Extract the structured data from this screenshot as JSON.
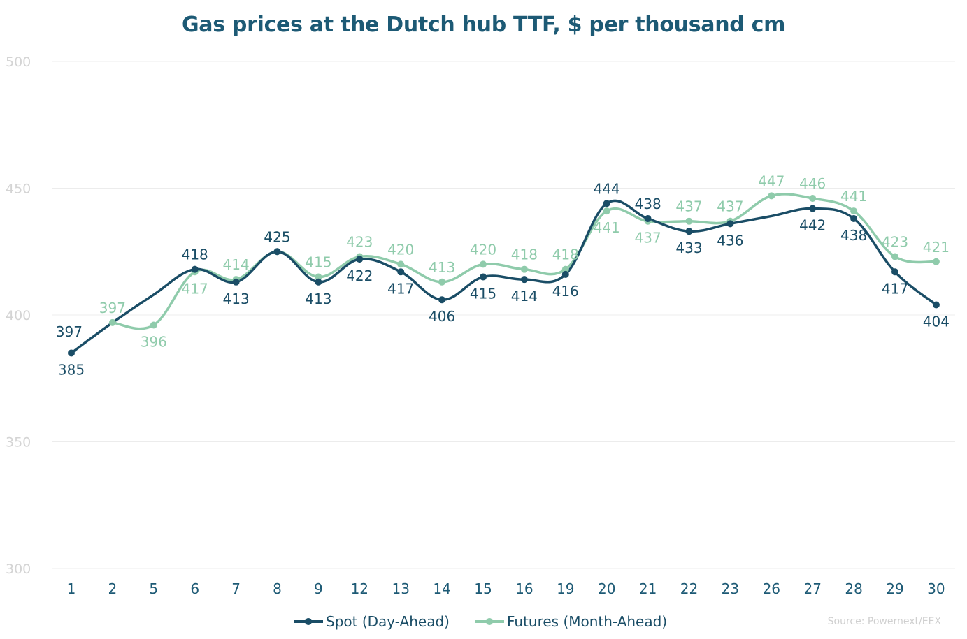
{
  "chart_data": {
    "type": "line",
    "title": "Gas prices at the Dutch hub TTF, $ per thousand cm",
    "categories": [
      "1",
      "2",
      "5",
      "6",
      "7",
      "8",
      "9",
      "12",
      "13",
      "14",
      "15",
      "16",
      "19",
      "20",
      "21",
      "22",
      "23",
      "26",
      "27",
      "28",
      "29",
      "30"
    ],
    "ylim": [
      300,
      500
    ],
    "yticks": [
      300,
      350,
      400,
      450,
      500
    ],
    "grid": true,
    "legend_position": "bottom",
    "series": [
      {
        "name": "Spot (Day-Ahead)",
        "color": "#1a4d66",
        "values": [
          385,
          null,
          null,
          418,
          413,
          425,
          413,
          422,
          417,
          406,
          415,
          414,
          416,
          444,
          438,
          433,
          436,
          null,
          442,
          438,
          417,
          404
        ],
        "plot_values": [
          385,
          397,
          408,
          418,
          413,
          425,
          413,
          422,
          417,
          406,
          415,
          414,
          416,
          444,
          438,
          433,
          436,
          439,
          442,
          438,
          417,
          404
        ]
      },
      {
        "name": "Futures (Month-Ahead)",
        "color": "#8fcbab",
        "values": [
          null,
          397,
          396,
          417,
          414,
          425,
          415,
          423,
          420,
          413,
          420,
          418,
          418,
          441,
          437,
          437,
          437,
          447,
          446,
          441,
          423,
          421
        ]
      }
    ],
    "extra_labels": [
      {
        "series": 0,
        "index": 1,
        "text": "397"
      }
    ]
  },
  "source": "Source: Powernext/EEX"
}
